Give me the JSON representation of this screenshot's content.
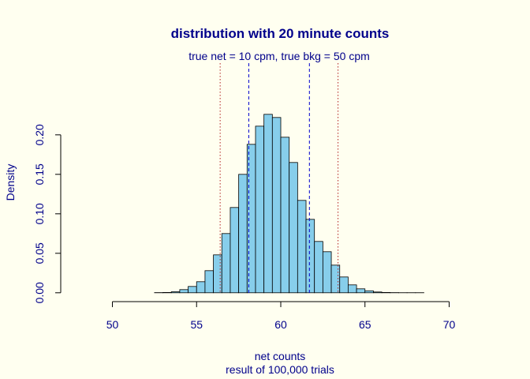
{
  "chart_data": {
    "type": "bar",
    "title": "distribution with  20  minute counts",
    "subtitle": "true net =  10 cpm, true bkg =  50  cpm",
    "xlabel": "net counts",
    "xlabel2": "result of 100,000 trials",
    "ylabel": "Density",
    "xlim": [
      47,
      70
    ],
    "ylim": [
      0,
      0.225
    ],
    "xticks": [
      50,
      55,
      60,
      65,
      70
    ],
    "yticks": [
      0.0,
      0.05,
      0.1,
      0.15,
      0.2
    ],
    "ytick_labels": [
      "0.00",
      "0.05",
      "0.10",
      "0.15",
      "0.20"
    ],
    "bin_width": 0.5,
    "bin_starts": [
      52.5,
      53.0,
      53.5,
      54.0,
      54.5,
      55.0,
      55.5,
      56.0,
      56.5,
      57.0,
      57.5,
      58.0,
      58.5,
      59.0,
      59.5,
      60.0,
      60.5,
      61.0,
      61.5,
      62.0,
      62.5,
      63.0,
      63.5,
      64.0,
      64.5,
      65.0,
      65.5,
      66.0,
      66.5,
      67.0,
      67.5,
      68.0
    ],
    "density": [
      0.0002,
      0.0004,
      0.0013,
      0.004,
      0.008,
      0.014,
      0.028,
      0.048,
      0.075,
      0.108,
      0.15,
      0.188,
      0.211,
      0.226,
      0.222,
      0.197,
      0.165,
      0.117,
      0.093,
      0.065,
      0.052,
      0.035,
      0.02,
      0.01,
      0.005,
      0.0025,
      0.001,
      0.0004,
      0.0002,
      0.0001,
      0.0001,
      0.0001
    ],
    "vlines": [
      {
        "x": 56.4,
        "color": "#b22222",
        "style": "dotted"
      },
      {
        "x": 58.1,
        "color": "#0000cd",
        "style": "dashed"
      },
      {
        "x": 61.7,
        "color": "#0000cd",
        "style": "dashed"
      },
      {
        "x": 63.4,
        "color": "#b22222",
        "style": "dotted"
      }
    ],
    "bar_fill": "#87ceeb",
    "bar_stroke": "#000000",
    "text_color": "#00008b",
    "background": "#fffff0"
  }
}
